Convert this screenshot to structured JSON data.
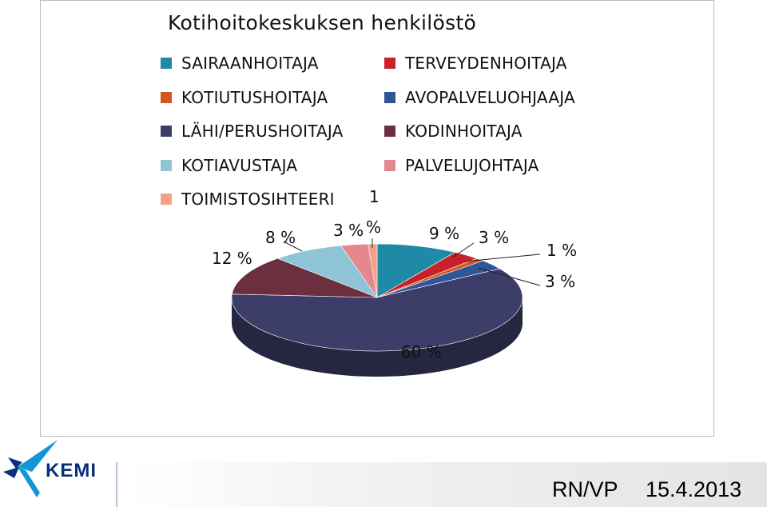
{
  "chart_data": {
    "type": "pie",
    "title": "Kotihoitokeskuksen henkilöstö",
    "legend_position": "top",
    "slices": [
      {
        "name": "SAIRAANHOITAJA",
        "value": 9,
        "label": "9 %",
        "color": "#1f8aa6"
      },
      {
        "name": "TERVEYDENHOITAJA",
        "value": 3,
        "label": "3 %",
        "color": "#c8212a"
      },
      {
        "name": "KOTIUTUSHOITAJA",
        "value": 1,
        "label": "1 %",
        "color": "#d3561c"
      },
      {
        "name": "AVOPALVELUOHJAAJA",
        "value": 3,
        "label": "3 %",
        "color": "#2f5597"
      },
      {
        "name": "LÄHI/PERUSHOITAJA",
        "value": 60,
        "label": "60 %",
        "color": "#3c3d68"
      },
      {
        "name": "KODINHOITAJA",
        "value": 12,
        "label": "12 %",
        "color": "#6b2f3f"
      },
      {
        "name": "KOTIAVUSTAJA",
        "value": 8,
        "label": "8 %",
        "color": "#8fc3d6"
      },
      {
        "name": "PALVELUJOHTAJA",
        "value": 3,
        "label": "3 %",
        "color": "#e4878e"
      },
      {
        "name": "TOIMISTOSIHTEERI",
        "value": 1,
        "label": "1 %",
        "color": "#f0a38a"
      }
    ]
  },
  "footer": {
    "author": "RN/VP",
    "date": "15.4.2013",
    "logo_text": "KEMI"
  }
}
